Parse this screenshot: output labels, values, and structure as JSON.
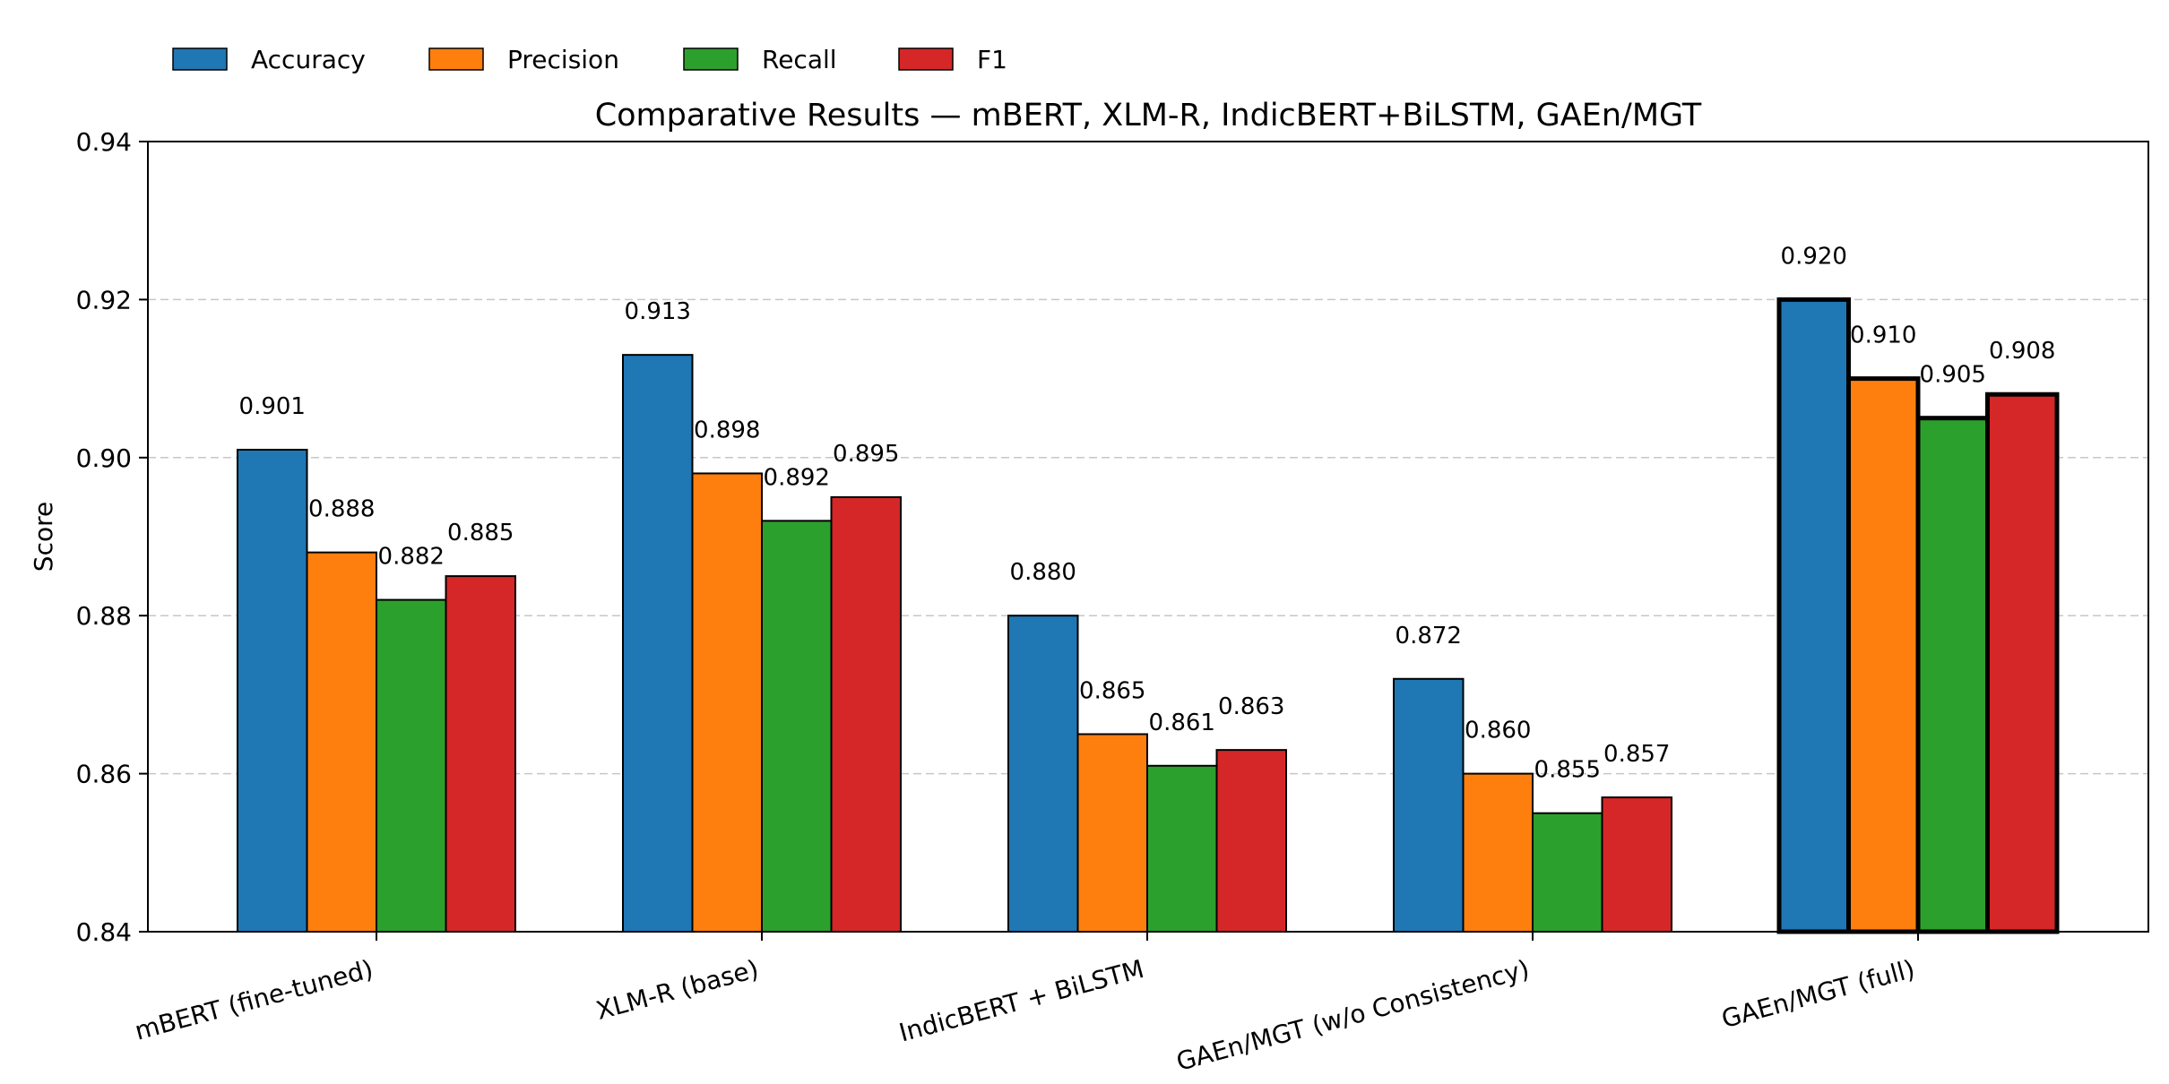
{
  "chart_data": {
    "type": "bar",
    "title": "Comparative Results — mBERT, XLM-R, IndicBERT+BiLSTM, GAEn/MGT",
    "xlabel": "",
    "ylabel": "Score",
    "ylim": [
      0.84,
      0.94
    ],
    "yticks": [
      "0.84",
      "0.86",
      "0.88",
      "0.90",
      "0.92",
      "0.94"
    ],
    "grid": "y-dashed",
    "legend_position": "top-left",
    "categories": [
      "mBERT (fine-tuned)",
      "XLM-R (base)",
      "IndicBERT + BiLSTM",
      "GAEn/MGT (w/o Consistency)",
      "GAEn/MGT (full)"
    ],
    "series": [
      {
        "name": "Accuracy",
        "color": "#1f77b4",
        "values": [
          0.901,
          0.913,
          0.88,
          0.872,
          0.92
        ],
        "labels": [
          "0.901",
          "0.913",
          "0.880",
          "0.872",
          "0.920"
        ]
      },
      {
        "name": "Precision",
        "color": "#ff7f0e",
        "values": [
          0.888,
          0.898,
          0.865,
          0.86,
          0.91
        ],
        "labels": [
          "0.888",
          "0.898",
          "0.865",
          "0.860",
          "0.910"
        ]
      },
      {
        "name": "Recall",
        "color": "#2ca02c",
        "values": [
          0.882,
          0.892,
          0.861,
          0.855,
          0.905
        ],
        "labels": [
          "0.882",
          "0.892",
          "0.861",
          "0.855",
          "0.905"
        ]
      },
      {
        "name": "F1",
        "color": "#d62728",
        "values": [
          0.885,
          0.895,
          0.863,
          0.857,
          0.908
        ],
        "labels": [
          "0.885",
          "0.895",
          "0.863",
          "0.857",
          "0.908"
        ]
      }
    ],
    "highlighted_category": "GAEn/MGT (full)"
  }
}
